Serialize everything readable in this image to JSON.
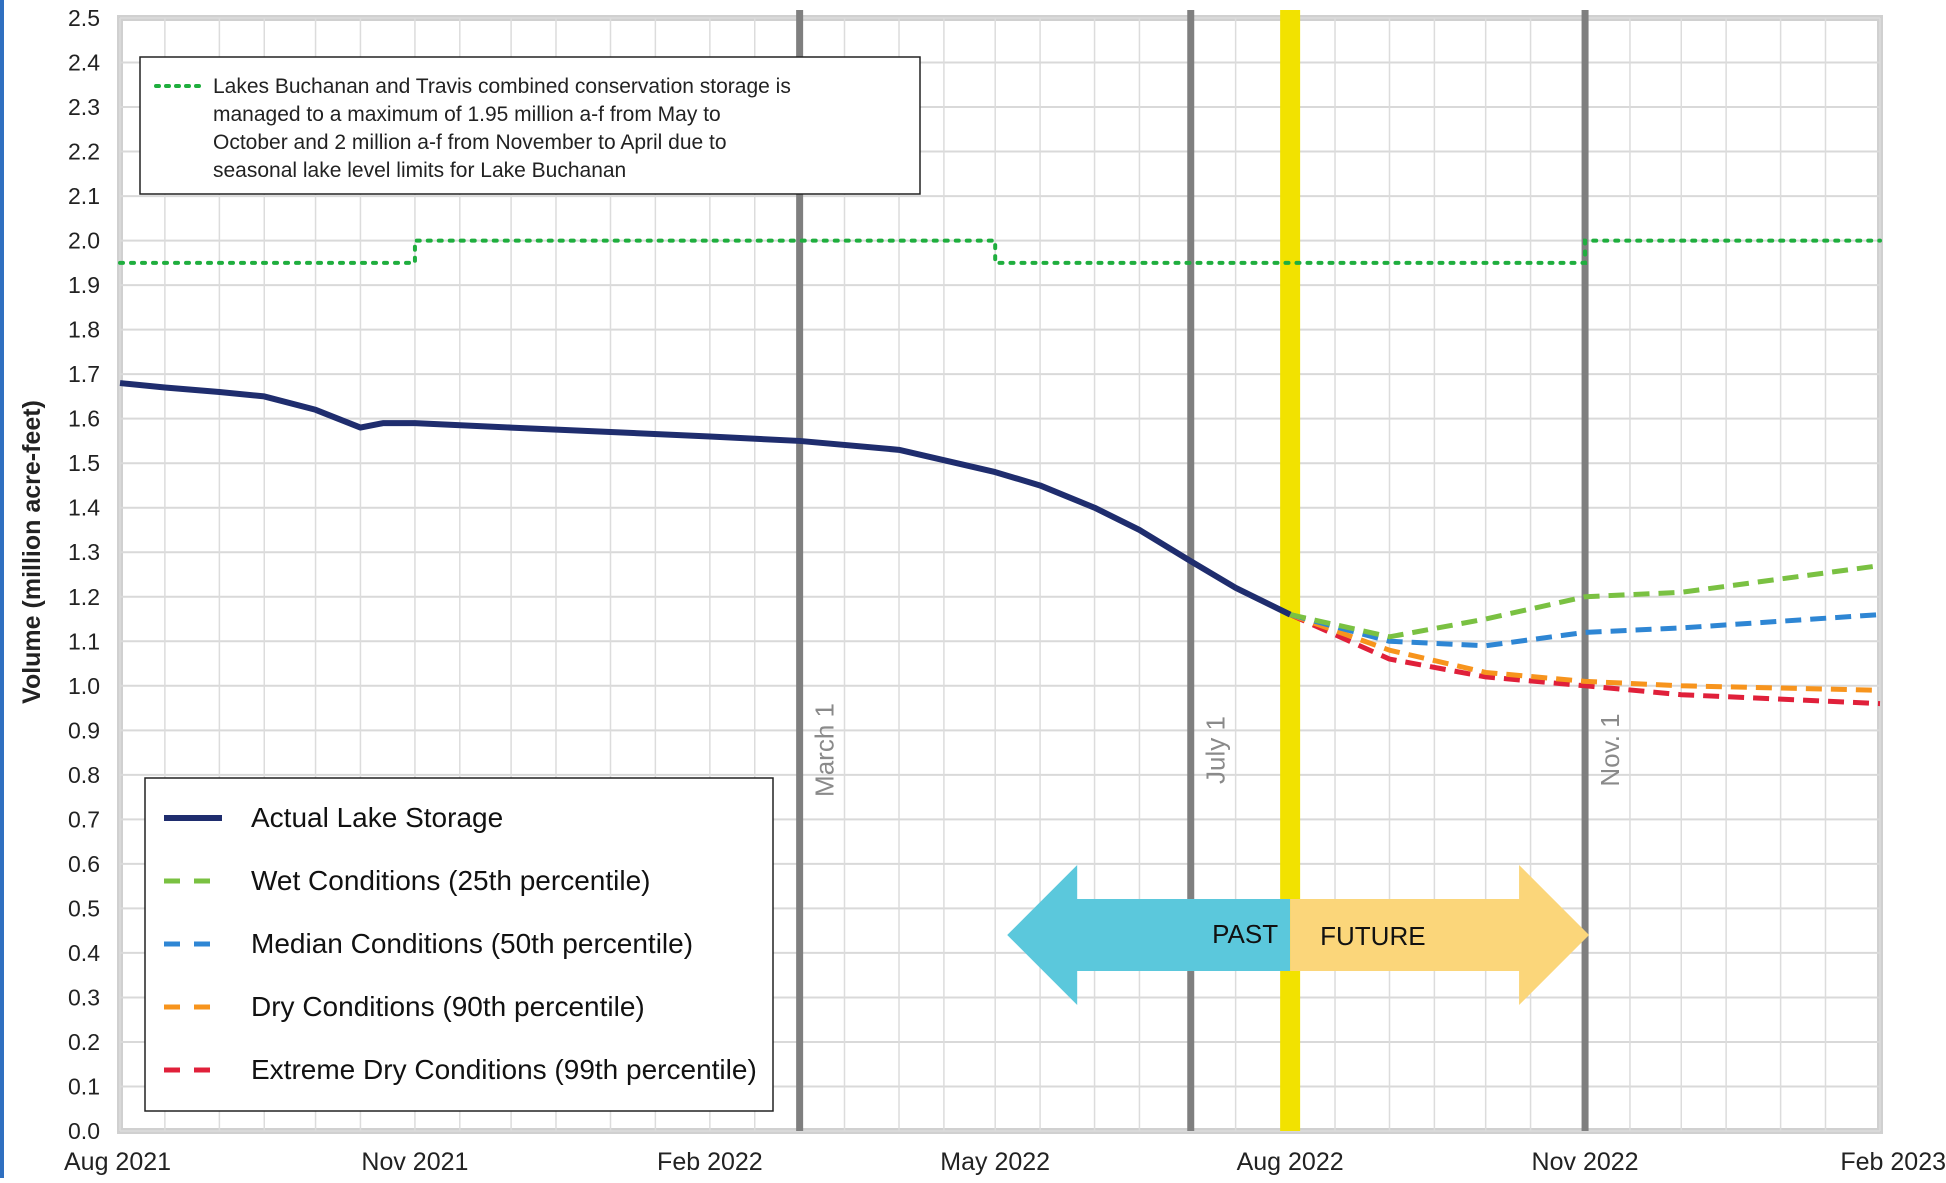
{
  "chart_data": {
    "type": "line",
    "title": "",
    "ylabel": "Volume  (million acre-feet)",
    "xlabel": "",
    "ylim": [
      0,
      2.5
    ],
    "yticks": [
      "0.0",
      "0.1",
      "0.2",
      "0.3",
      "0.4",
      "0.5",
      "0.6",
      "0.7",
      "0.8",
      "0.9",
      "1.0",
      "1.1",
      "1.2",
      "1.3",
      "1.4",
      "1.5",
      "1.6",
      "1.7",
      "1.8",
      "1.9",
      "2.0",
      "2.1",
      "2.2",
      "2.3",
      "2.4",
      "2.5"
    ],
    "xlim": [
      "2021-08-01",
      "2023-02-01"
    ],
    "xticks": [
      {
        "date": "2021-08-01",
        "label": "Aug 2021"
      },
      {
        "date": "2021-11-01",
        "label": "Nov 2021"
      },
      {
        "date": "2022-02-01",
        "label": "Feb 2022"
      },
      {
        "date": "2022-05-01",
        "label": "May 2022"
      },
      {
        "date": "2022-08-01",
        "label": "Aug 2022"
      },
      {
        "date": "2022-11-01",
        "label": "Nov 2022"
      },
      {
        "date": "2023-02-01",
        "label": "Feb 2023"
      }
    ],
    "vertical_markers": [
      {
        "date": "2022-03-01",
        "label": "March 1",
        "color": "#7f7f7f"
      },
      {
        "date": "2022-07-01",
        "label": "July 1",
        "color": "#7f7f7f"
      },
      {
        "date": "2022-11-01",
        "label": "Nov. 1",
        "color": "#7f7f7f"
      },
      {
        "date": "2022-08-01",
        "label": "",
        "color": "#f2e200"
      }
    ],
    "conservation_limit": {
      "note": "Lakes Buchanan and Travis combined conservation storage is managed to a maximum of 1.95 million a-f from May  to October and 2 million a-f from November to April  due to seasonal lake level limits for Lake Buchanan",
      "color": "#1fae3e",
      "points": [
        {
          "x": "2021-08-01",
          "y": 1.95
        },
        {
          "x": "2021-11-01",
          "y": 1.95
        },
        {
          "x": "2021-11-01",
          "y": 2.0
        },
        {
          "x": "2022-05-01",
          "y": 2.0
        },
        {
          "x": "2022-05-01",
          "y": 1.95
        },
        {
          "x": "2022-11-01",
          "y": 1.95
        },
        {
          "x": "2022-11-01",
          "y": 2.0
        },
        {
          "x": "2023-02-01",
          "y": 2.0
        }
      ]
    },
    "series": [
      {
        "name": "Actual Lake Storage",
        "color": "#1f2d6e",
        "dash": "solid",
        "points": [
          {
            "x": "2021-08-01",
            "y": 1.68
          },
          {
            "x": "2021-08-15",
            "y": 1.67
          },
          {
            "x": "2021-09-01",
            "y": 1.66
          },
          {
            "x": "2021-09-15",
            "y": 1.65
          },
          {
            "x": "2021-10-01",
            "y": 1.62
          },
          {
            "x": "2021-10-15",
            "y": 1.58
          },
          {
            "x": "2021-10-22",
            "y": 1.59
          },
          {
            "x": "2021-11-01",
            "y": 1.59
          },
          {
            "x": "2021-12-01",
            "y": 1.58
          },
          {
            "x": "2022-01-01",
            "y": 1.57
          },
          {
            "x": "2022-02-01",
            "y": 1.56
          },
          {
            "x": "2022-03-01",
            "y": 1.55
          },
          {
            "x": "2022-04-01",
            "y": 1.53
          },
          {
            "x": "2022-05-01",
            "y": 1.48
          },
          {
            "x": "2022-05-15",
            "y": 1.45
          },
          {
            "x": "2022-06-01",
            "y": 1.4
          },
          {
            "x": "2022-06-15",
            "y": 1.35
          },
          {
            "x": "2022-07-01",
            "y": 1.28
          },
          {
            "x": "2022-07-15",
            "y": 1.22
          },
          {
            "x": "2022-08-01",
            "y": 1.16
          }
        ]
      },
      {
        "name": "Wet Conditions (25th percentile)",
        "color": "#7ac142",
        "dash": "dash",
        "points": [
          {
            "x": "2022-08-01",
            "y": 1.16
          },
          {
            "x": "2022-09-01",
            "y": 1.11
          },
          {
            "x": "2022-10-01",
            "y": 1.15
          },
          {
            "x": "2022-11-01",
            "y": 1.2
          },
          {
            "x": "2022-12-01",
            "y": 1.21
          },
          {
            "x": "2023-02-01",
            "y": 1.27
          }
        ]
      },
      {
        "name": "Median Conditions (50th percentile)",
        "color": "#2e86d4",
        "dash": "dash",
        "points": [
          {
            "x": "2022-08-01",
            "y": 1.16
          },
          {
            "x": "2022-09-01",
            "y": 1.1
          },
          {
            "x": "2022-10-01",
            "y": 1.09
          },
          {
            "x": "2022-11-01",
            "y": 1.12
          },
          {
            "x": "2022-12-01",
            "y": 1.13
          },
          {
            "x": "2023-02-01",
            "y": 1.16
          }
        ]
      },
      {
        "name": "Dry Conditions (90th percentile)",
        "color": "#f7941d",
        "dash": "dash",
        "points": [
          {
            "x": "2022-08-01",
            "y": 1.16
          },
          {
            "x": "2022-09-01",
            "y": 1.08
          },
          {
            "x": "2022-10-01",
            "y": 1.03
          },
          {
            "x": "2022-11-01",
            "y": 1.01
          },
          {
            "x": "2022-12-01",
            "y": 1.0
          },
          {
            "x": "2023-02-01",
            "y": 0.99
          }
        ]
      },
      {
        "name": "Extreme Dry Conditions (99th percentile)",
        "color": "#e0203a",
        "dash": "dash",
        "points": [
          {
            "x": "2022-08-01",
            "y": 1.16
          },
          {
            "x": "2022-09-01",
            "y": 1.06
          },
          {
            "x": "2022-10-01",
            "y": 1.02
          },
          {
            "x": "2022-11-01",
            "y": 1.0
          },
          {
            "x": "2022-12-01",
            "y": 0.98
          },
          {
            "x": "2023-02-01",
            "y": 0.96
          }
        ]
      }
    ],
    "arrows": {
      "past_label": "PAST",
      "future_label": "FUTURE",
      "past_color": "#5bc8dc",
      "future_color": "#fbd67a"
    },
    "grid": true,
    "legend_position": "bottom-left",
    "note_position": "top-left"
  }
}
